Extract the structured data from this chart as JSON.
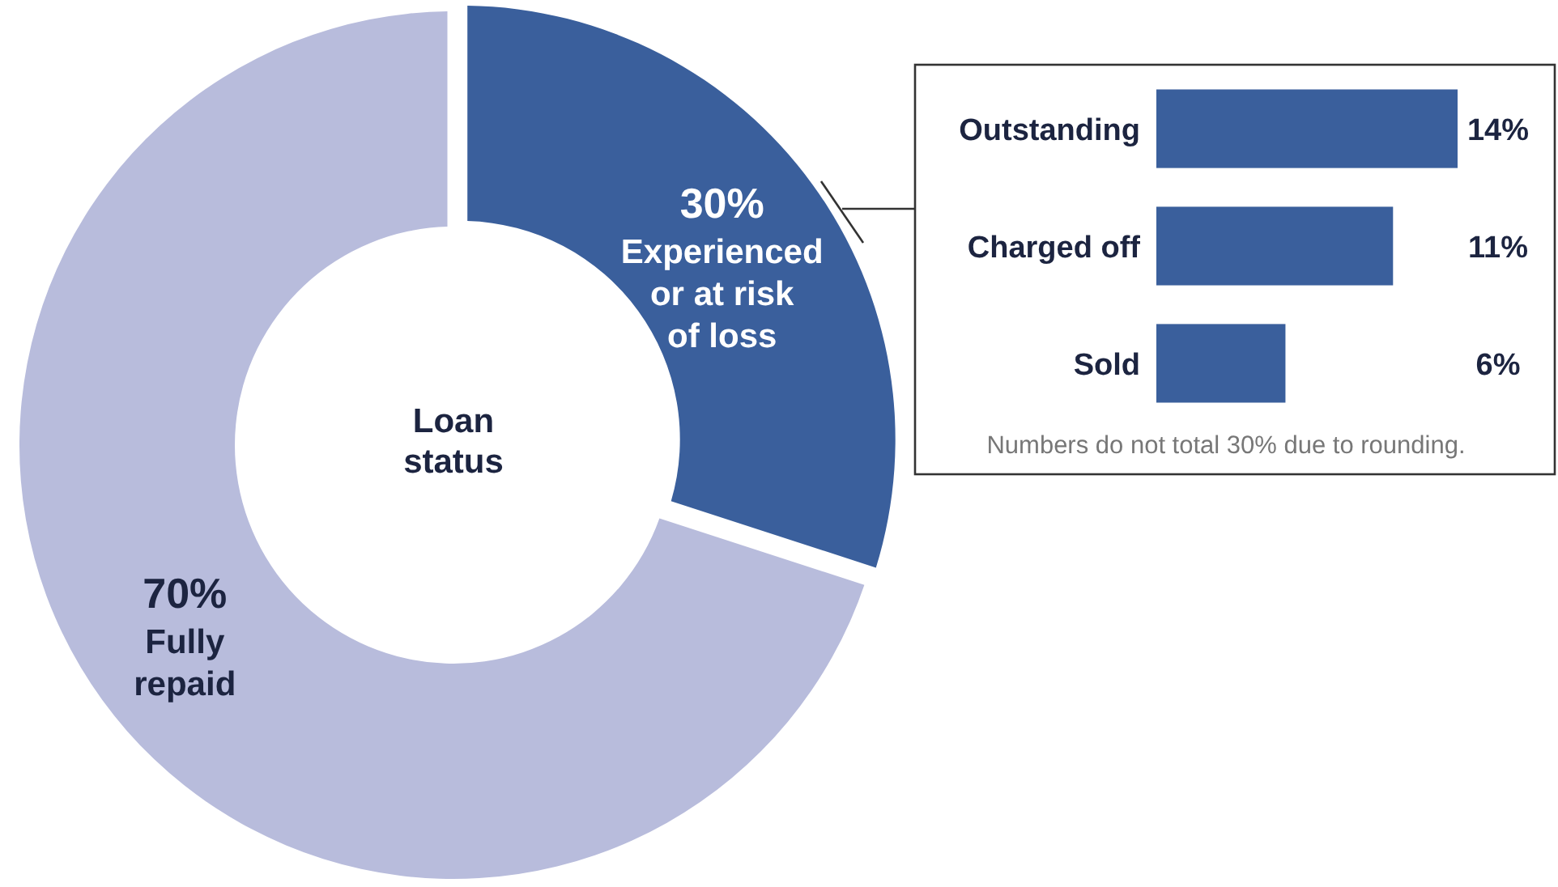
{
  "chart_data": [
    {
      "type": "donut",
      "title": "Loan status",
      "categories": [
        "Experienced or at risk of loss",
        "Fully repaid"
      ],
      "values": [
        30,
        70
      ],
      "colors": [
        "#3a5f9c",
        "#b8bcdc"
      ],
      "value_labels": [
        "30%",
        "70%"
      ]
    },
    {
      "type": "bar",
      "orientation": "horizontal",
      "categories": [
        "Outstanding",
        "Charged off",
        "Sold"
      ],
      "values": [
        14,
        11,
        6
      ],
      "color": "#3a5f9c",
      "value_labels": [
        "14%",
        "11%",
        "6%"
      ],
      "annotations": [
        "Numbers do not total 30% due to rounding."
      ]
    }
  ]
}
